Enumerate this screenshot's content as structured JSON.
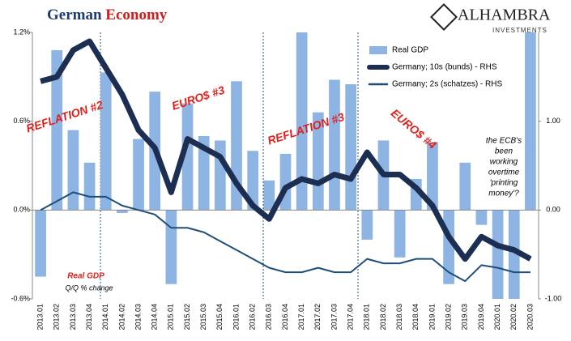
{
  "chart_data": {
    "type": "bar",
    "title": "German",
    "title_emphasis": "Economy",
    "logo": {
      "name": "ALHAMBRA",
      "tagline": "INVESTMENTS"
    },
    "categories": [
      "2013.01",
      "2013.02",
      "2013.03",
      "2013.04",
      "2014.01",
      "2014.02",
      "2014.03",
      "2014.04",
      "2015.01",
      "2015.02",
      "2015.03",
      "2015.04",
      "2016.01",
      "2016.02",
      "2016.03",
      "2016.04",
      "2017.01",
      "2017.02",
      "2017.03",
      "2017.04",
      "2018.01",
      "2018.02",
      "2018.03",
      "2018.04",
      "2019.01",
      "2019.02",
      "2019.03",
      "2019.04",
      "2020.01",
      "2020.02",
      "2020.03"
    ],
    "series": [
      {
        "name": "Real GDP",
        "type": "bar",
        "color": "#8eb4e3",
        "values": [
          -0.45,
          1.08,
          0.54,
          0.32,
          0.93,
          -0.02,
          0.48,
          0.8,
          -0.5,
          0.72,
          0.5,
          0.47,
          0.87,
          0.4,
          0.2,
          0.38,
          1.2,
          0.66,
          0.88,
          0.85,
          -0.2,
          0.47,
          -0.32,
          0.21,
          0.46,
          -0.5,
          0.32,
          -0.1,
          -0.6,
          -0.6,
          1.2
        ]
      },
      {
        "name": "Germany; 10s (bunds) - RHS",
        "type": "line",
        "axis": "y2",
        "color": "#1c2e52",
        "values": [
          1.45,
          1.5,
          1.8,
          1.9,
          1.6,
          1.3,
          0.9,
          0.7,
          0.2,
          0.8,
          0.7,
          0.6,
          0.3,
          0.05,
          -0.1,
          0.25,
          0.35,
          0.3,
          0.4,
          0.35,
          0.65,
          0.4,
          0.4,
          0.25,
          0.05,
          -0.3,
          -0.55,
          -0.3,
          -0.4,
          -0.45,
          -0.55
        ]
      },
      {
        "name": "Germany; 2s (schatzes) - RHS",
        "type": "line",
        "axis": "y2",
        "color": "#1f4e79",
        "values": [
          0.0,
          0.1,
          0.2,
          0.15,
          0.15,
          0.05,
          0.0,
          -0.05,
          -0.2,
          -0.2,
          -0.25,
          -0.35,
          -0.45,
          -0.55,
          -0.65,
          -0.7,
          -0.7,
          -0.65,
          -0.7,
          -0.7,
          -0.55,
          -0.6,
          -0.6,
          -0.55,
          -0.55,
          -0.7,
          -0.8,
          -0.62,
          -0.65,
          -0.7,
          -0.7
        ]
      }
    ],
    "ylim": [
      -0.6,
      1.2
    ],
    "yticks": [
      {
        "value": -0.6,
        "label": "-0.6%"
      },
      {
        "value": 0,
        "label": "0.0%"
      },
      {
        "value": 0.6,
        "label": "0.6%"
      },
      {
        "value": 1.2,
        "label": "1.2%"
      }
    ],
    "y2lim": [
      -1,
      2
    ],
    "y2ticks": [
      {
        "value": -1,
        "label": "-1.00"
      },
      {
        "value": 0,
        "label": "0.00"
      },
      {
        "value": 1,
        "label": "1.00"
      }
    ],
    "annotations": [
      "REFLATION #2",
      "EURO$ #3",
      "REFLATION #3",
      "EURO$ #4"
    ],
    "ecb_note": [
      "the ECB's",
      "been",
      "working",
      "overtime",
      "'printing",
      "money'?"
    ],
    "gdp_note": [
      "Real GDP",
      "Q/Q % change"
    ]
  }
}
